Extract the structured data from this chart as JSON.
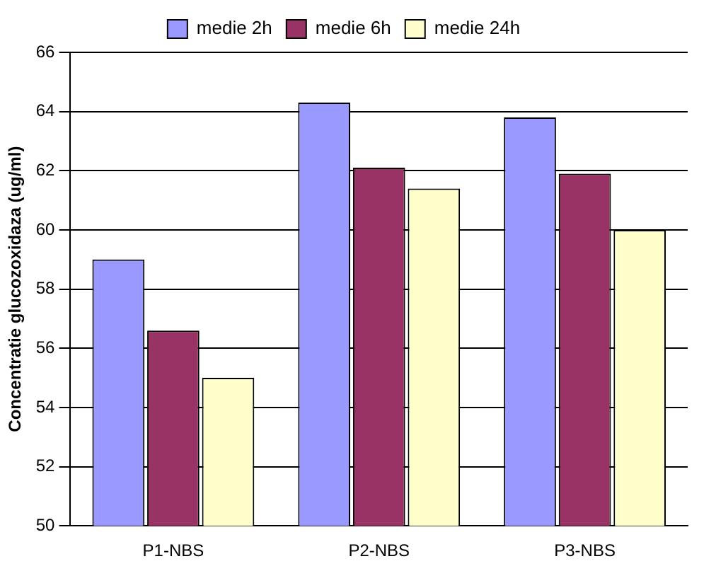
{
  "chart_data": {
    "type": "bar",
    "ylabel": "Concentratie glucozoxidaza (ug/ml)",
    "categories": [
      "P1-NBS",
      "P2-NBS",
      "P3-NBS"
    ],
    "series": [
      {
        "name": "medie 2h",
        "color": "#9999ff",
        "values": [
          59,
          64.3,
          63.8
        ]
      },
      {
        "name": "medie 6h",
        "color": "#993366",
        "values": [
          56.6,
          62.1,
          61.9
        ]
      },
      {
        "name": "medie 24h",
        "color": "#ffffcc",
        "values": [
          55,
          61.4,
          60
        ]
      }
    ],
    "ylim": [
      50,
      66
    ],
    "yticks": [
      50,
      52,
      54,
      56,
      58,
      60,
      62,
      64,
      66
    ],
    "grid": "y",
    "legend": "top"
  }
}
